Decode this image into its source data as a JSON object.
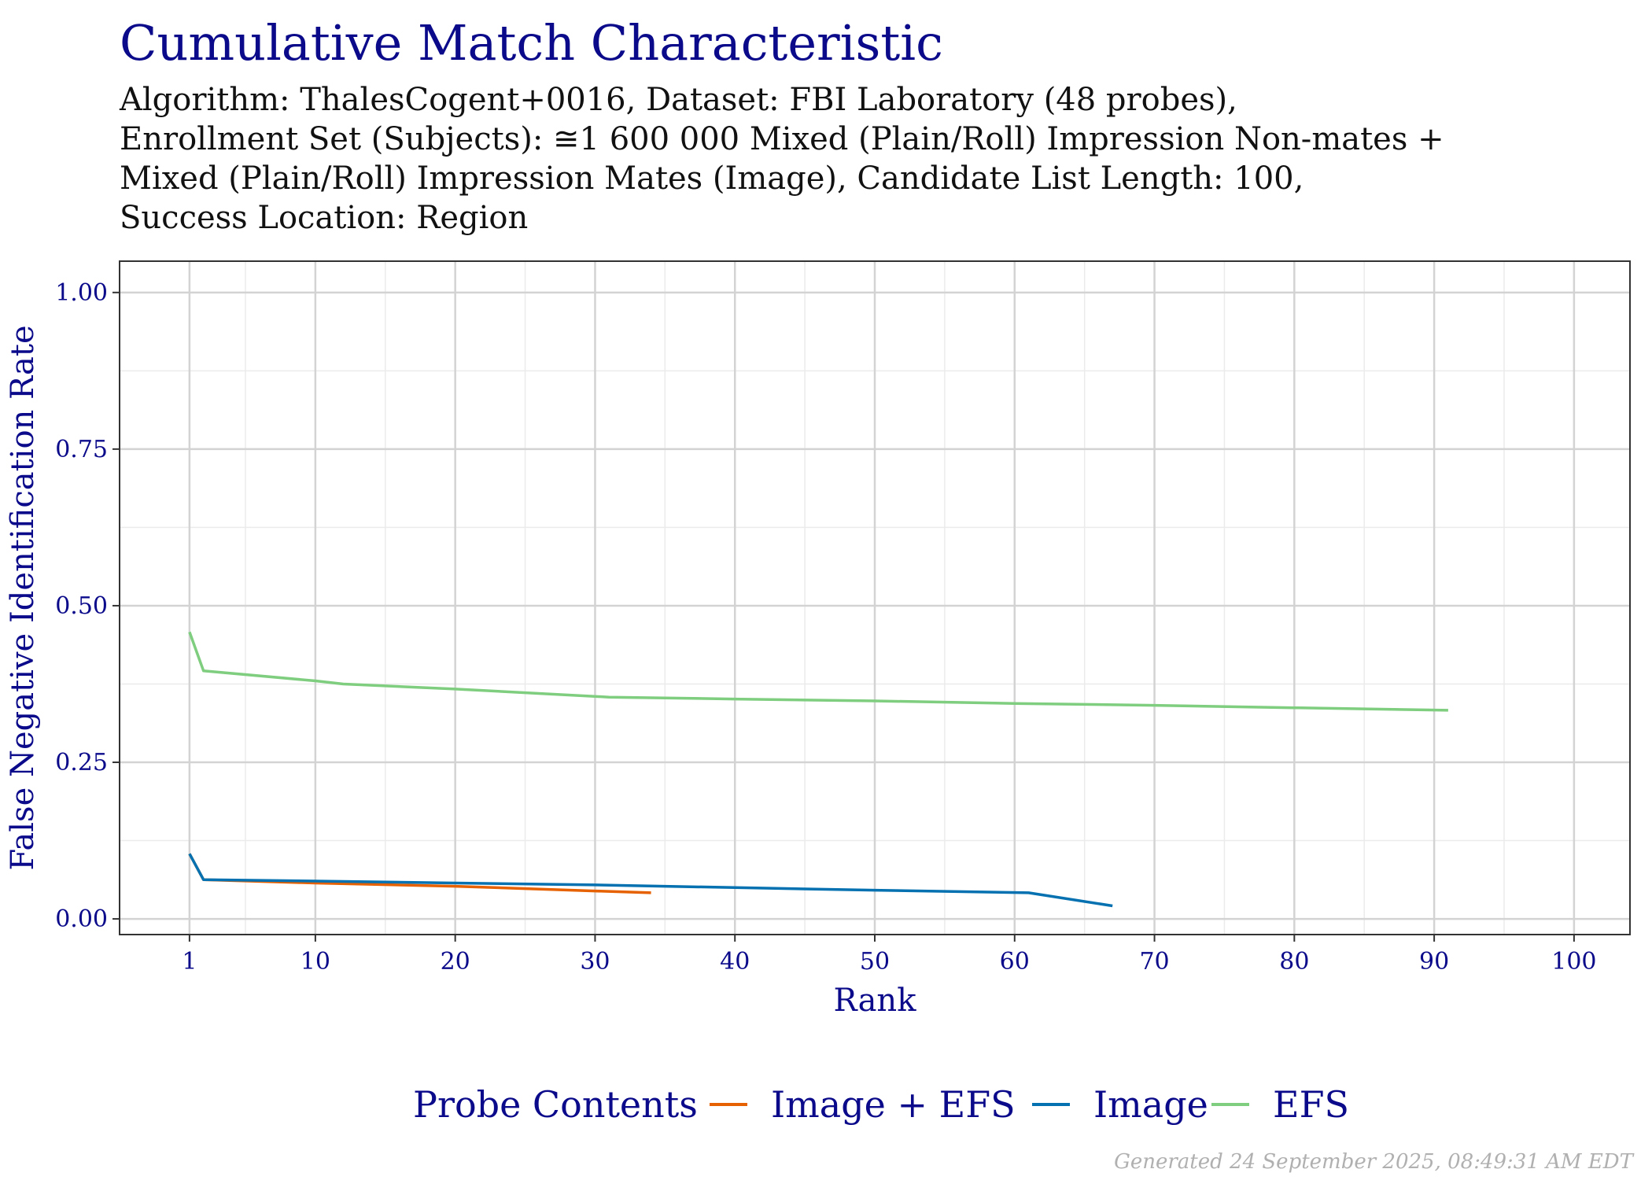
{
  "chart_data": {
    "type": "line",
    "title": "Cumulative Match Characteristic",
    "subtitle_lines": [
      "Algorithm: ThalesCogent+0016, Dataset: FBI Laboratory (48 probes),",
      "Enrollment Set (Subjects): ≅1 600 000 Mixed (Plain/Roll) Impression Non-mates +",
      "Mixed (Plain/Roll) Impression Mates (Image), Candidate List Length: 100,",
      "Success Location: Region"
    ],
    "xlabel": "Rank",
    "ylabel": "False Negative Identification Rate",
    "xlim": [
      -4,
      104
    ],
    "ylim": [
      -0.025,
      1.05
    ],
    "x_ticks": [
      1,
      10,
      20,
      30,
      40,
      50,
      60,
      70,
      80,
      90,
      100
    ],
    "x_tick_labels": [
      "1",
      "10",
      "20",
      "30",
      "40",
      "50",
      "60",
      "70",
      "80",
      "90",
      "100"
    ],
    "x_minor_ticks": [
      5,
      15,
      25,
      35,
      45,
      55,
      65,
      75,
      85,
      95
    ],
    "y_ticks": [
      0,
      0.25,
      0.5,
      0.75,
      1.0
    ],
    "y_tick_labels": [
      "0.00",
      "0.25",
      "0.50",
      "0.75",
      "1.00"
    ],
    "y_minor_ticks": [
      0.125,
      0.375,
      0.625,
      0.875
    ],
    "grid": true,
    "legend": {
      "title": "Probe Contents",
      "position": "bottom"
    },
    "series": [
      {
        "name": "Image + EFS",
        "color": "#e66101",
        "x": [
          1,
          2,
          10,
          20,
          30,
          34
        ],
        "y": [
          0.104,
          0.0625,
          0.0573,
          0.0521,
          0.0446,
          0.0417
        ]
      },
      {
        "name": "Image",
        "color": "#0571b0",
        "x": [
          1,
          2,
          10,
          20,
          30,
          40,
          50,
          61,
          67
        ],
        "y": [
          0.104,
          0.0625,
          0.0604,
          0.0573,
          0.0542,
          0.05,
          0.0458,
          0.0417,
          0.0208
        ]
      },
      {
        "name": "EFS",
        "color": "#7fcd7f",
        "x": [
          1,
          2,
          10,
          12,
          20,
          31,
          40,
          50,
          60,
          70,
          80,
          91
        ],
        "y": [
          0.458,
          0.396,
          0.38,
          0.375,
          0.367,
          0.354,
          0.351,
          0.348,
          0.344,
          0.341,
          0.337,
          0.333
        ]
      }
    ]
  },
  "footer": "Generated 24 September 2025, 08:49:31 AM EDT"
}
